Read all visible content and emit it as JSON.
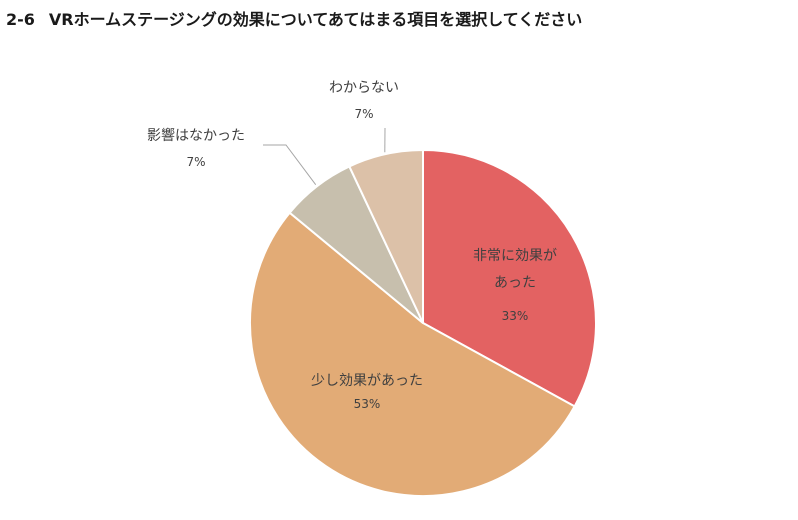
{
  "header": {
    "number": "2-6",
    "title": "VRホームステージングの効果についてあてはまる項目を選択してください"
  },
  "chart_data": {
    "type": "pie",
    "title": "",
    "start_angle_deg": 0,
    "direction": "clockwise",
    "slices": [
      {
        "label": "非常に効果が\nあった",
        "value": 33,
        "pct_label": "33%",
        "color": "#e36262"
      },
      {
        "label": "少し効果があった",
        "value": 53,
        "pct_label": "53%",
        "color": "#e2ab76"
      },
      {
        "label": "影響はなかった",
        "value": 7,
        "pct_label": "7%",
        "color": "#c7bfad"
      },
      {
        "label": "わからない",
        "value": 7,
        "pct_label": "7%",
        "color": "#dcc1a8"
      }
    ]
  }
}
